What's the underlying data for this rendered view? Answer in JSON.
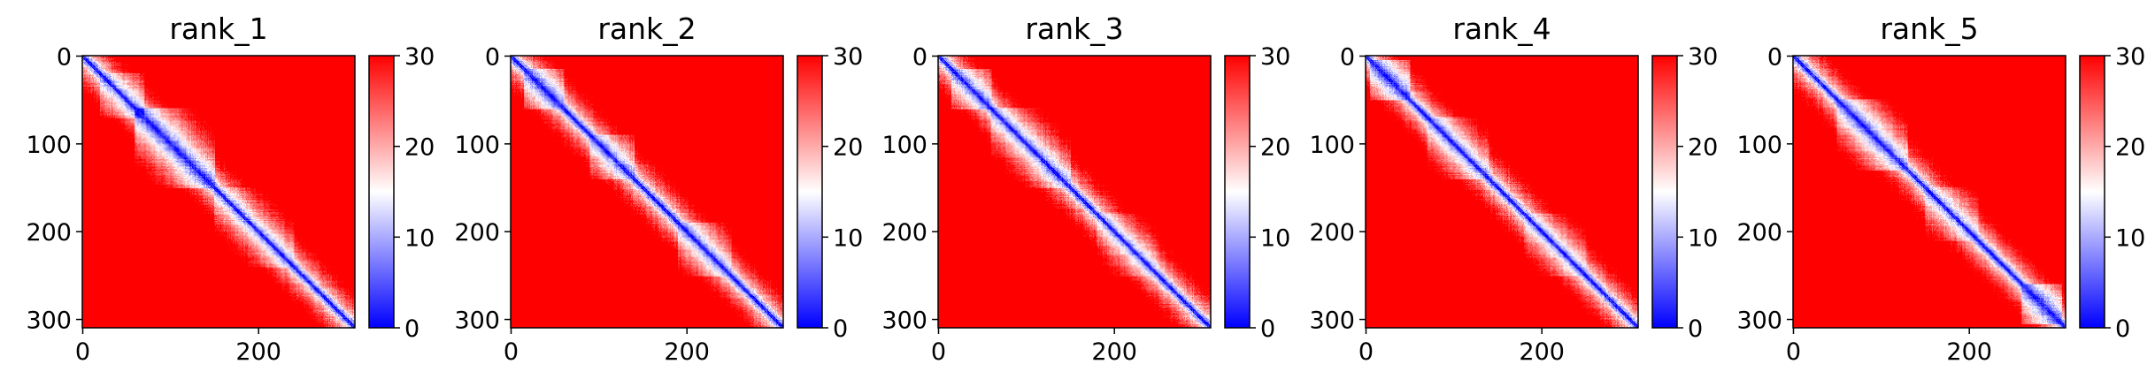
{
  "chart_data": [
    {
      "type": "heatmap",
      "title": "rank_1",
      "x_ticks": [
        0,
        200
      ],
      "y_ticks": [
        0,
        100,
        200,
        300
      ],
      "colorbar_ticks": [
        0,
        10,
        20,
        30
      ],
      "colorbar_range": [
        0,
        30
      ],
      "colormap": "bwr",
      "matrix_size": 310,
      "blocks": [
        [
          60,
          150,
          0.55
        ],
        [
          20,
          70,
          0.35
        ],
        [
          150,
          240,
          0.25
        ]
      ]
    },
    {
      "type": "heatmap",
      "title": "rank_2",
      "x_ticks": [
        0,
        200
      ],
      "y_ticks": [
        0,
        100,
        200,
        300
      ],
      "colorbar_ticks": [
        0,
        10,
        20,
        30
      ],
      "colorbar_range": [
        0,
        30
      ],
      "colormap": "bwr",
      "matrix_size": 310,
      "blocks": [
        [
          15,
          60,
          0.5
        ],
        [
          90,
          140,
          0.4
        ],
        [
          190,
          250,
          0.35
        ]
      ]
    },
    {
      "type": "heatmap",
      "title": "rank_3",
      "x_ticks": [
        0,
        200
      ],
      "y_ticks": [
        0,
        100,
        200,
        300
      ],
      "colorbar_ticks": [
        0,
        10,
        20,
        30
      ],
      "colorbar_range": [
        0,
        30
      ],
      "colormap": "bwr",
      "matrix_size": 310,
      "blocks": [
        [
          15,
          60,
          0.45
        ],
        [
          60,
          150,
          0.35
        ],
        [
          180,
          250,
          0.25
        ]
      ]
    },
    {
      "type": "heatmap",
      "title": "rank_4",
      "x_ticks": [
        0,
        200
      ],
      "y_ticks": [
        0,
        100,
        200,
        300
      ],
      "colorbar_ticks": [
        0,
        10,
        20,
        30
      ],
      "colorbar_range": [
        0,
        30
      ],
      "colormap": "bwr",
      "matrix_size": 310,
      "blocks": [
        [
          5,
          50,
          0.55
        ],
        [
          70,
          140,
          0.35
        ],
        [
          180,
          250,
          0.25
        ]
      ]
    },
    {
      "type": "heatmap",
      "title": "rank_5",
      "x_ticks": [
        0,
        200
      ],
      "y_ticks": [
        0,
        100,
        200,
        300
      ],
      "colorbar_ticks": [
        0,
        10,
        20,
        30
      ],
      "colorbar_range": [
        0,
        30
      ],
      "colormap": "bwr",
      "matrix_size": 310,
      "blocks": [
        [
          50,
          130,
          0.45
        ],
        [
          150,
          210,
          0.3
        ],
        [
          260,
          305,
          0.6
        ]
      ]
    }
  ]
}
